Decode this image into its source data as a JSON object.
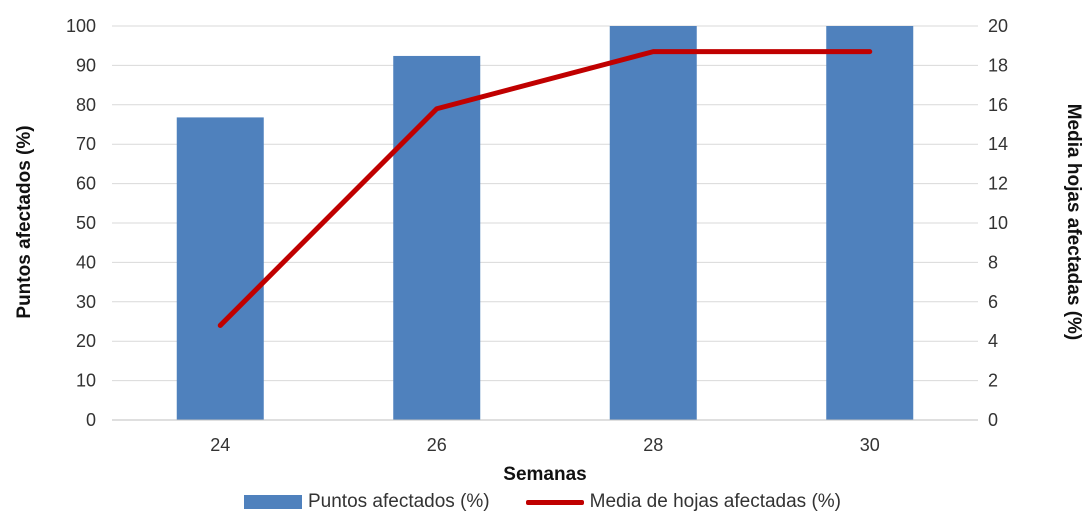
{
  "chart_data": {
    "type": "bar",
    "categories": [
      "24",
      "26",
      "28",
      "30"
    ],
    "xlabel": "Semanas",
    "ylabel": "Puntos afectados (%)",
    "y2label": "Media hojas afectadas (%)",
    "ylim": [
      0,
      100
    ],
    "y2lim": [
      0,
      20
    ],
    "yticks": [
      "0",
      "10",
      "20",
      "30",
      "40",
      "50",
      "60",
      "70",
      "80",
      "90",
      "100"
    ],
    "y2ticks": [
      "0",
      "2",
      "4",
      "6",
      "8",
      "10",
      "12",
      "14",
      "16",
      "18",
      "20"
    ],
    "grid": true,
    "legend_position": "bottom",
    "series": [
      {
        "name": "Puntos afectados (%)",
        "type": "bar",
        "axis": "left",
        "color": "#4f81bd",
        "values": [
          76.8,
          92.4,
          100,
          100
        ]
      },
      {
        "name": "Media de hojas afectadas (%)",
        "type": "line",
        "axis": "right",
        "color": "#c00000",
        "values": [
          4.8,
          15.8,
          18.7,
          18.7
        ]
      }
    ]
  }
}
